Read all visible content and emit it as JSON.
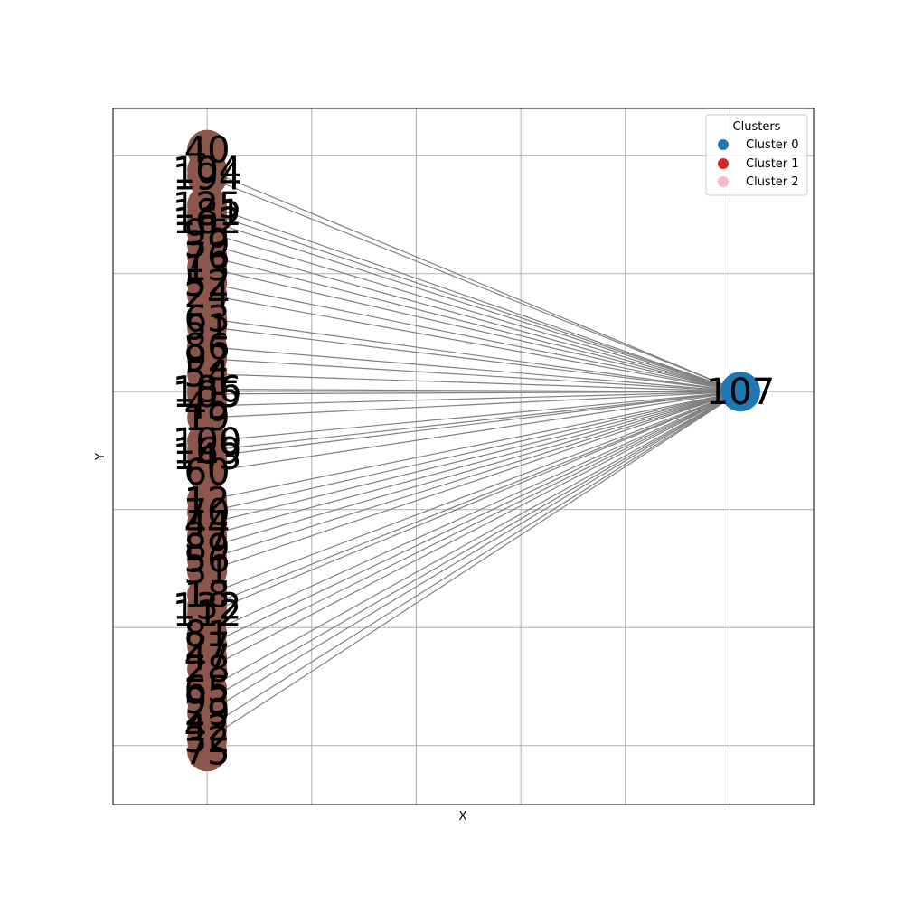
{
  "axes": {
    "xlabel": "X",
    "ylabel": "Y",
    "grid": true
  },
  "legend": {
    "title": "Clusters",
    "placement": "top-right",
    "entries": [
      {
        "label": "Cluster 0",
        "color": "#1f77b4"
      },
      {
        "label": "Cluster 1",
        "color": "#d62728"
      },
      {
        "label": "Cluster 2",
        "color": "#f7b6d2"
      }
    ]
  },
  "colors": {
    "hub_node": "#1f77b4",
    "leaf_node": "#8c564b",
    "edge": "#808080",
    "grid": "#b0b0b0"
  },
  "graph": {
    "hub": {
      "id": "107",
      "x": 1.02,
      "y": 0.0
    },
    "leaves": [
      {
        "id": "40",
        "y": 2.05
      },
      {
        "id": "104",
        "y": 1.88
      },
      {
        "id": "194",
        "y": 1.82
      },
      {
        "id": "125",
        "y": 1.58
      },
      {
        "id": "181",
        "y": 1.52
      },
      {
        "id": "162",
        "y": 1.45
      },
      {
        "id": "95",
        "y": 1.35
      },
      {
        "id": "39",
        "y": 1.25
      },
      {
        "id": "76",
        "y": 1.15
      },
      {
        "id": "13",
        "y": 1.05
      },
      {
        "id": "52",
        "y": 0.92
      },
      {
        "id": "24",
        "y": 0.82
      },
      {
        "id": "63",
        "y": 0.62
      },
      {
        "id": "51",
        "y": 0.55
      },
      {
        "id": "86",
        "y": 0.38
      },
      {
        "id": "92",
        "y": 0.28
      },
      {
        "id": "54",
        "y": 0.15
      },
      {
        "id": "186",
        "y": 0.02
      },
      {
        "id": "105",
        "y": -0.02
      },
      {
        "id": "45",
        "y": -0.12
      },
      {
        "id": "19",
        "y": -0.22
      },
      {
        "id": "100",
        "y": -0.42
      },
      {
        "id": "169",
        "y": -0.5
      },
      {
        "id": "143",
        "y": -0.55
      },
      {
        "id": "60",
        "y": -0.68
      },
      {
        "id": "12",
        "y": -0.92
      },
      {
        "id": "70",
        "y": -1.02
      },
      {
        "id": "44",
        "y": -1.12
      },
      {
        "id": "37",
        "y": -1.22
      },
      {
        "id": "89",
        "y": -1.32
      },
      {
        "id": "56",
        "y": -1.42
      },
      {
        "id": "31",
        "y": -1.52
      },
      {
        "id": "18",
        "y": -1.72
      },
      {
        "id": "132",
        "y": -1.82
      },
      {
        "id": "112",
        "y": -1.88
      },
      {
        "id": "81",
        "y": -2.05
      },
      {
        "id": "27",
        "y": -2.15
      },
      {
        "id": "47",
        "y": -2.25
      },
      {
        "id": "28",
        "y": -2.35
      },
      {
        "id": "65",
        "y": -2.52
      },
      {
        "id": "93",
        "y": -2.62
      },
      {
        "id": "29",
        "y": -2.72
      },
      {
        "id": "42",
        "y": -2.85
      },
      {
        "id": "32",
        "y": -2.95
      },
      {
        "id": "75",
        "y": -3.05
      }
    ],
    "edges": [
      {
        "from": "104",
        "to": "107"
      },
      {
        "from": "194",
        "to": "107"
      },
      {
        "from": "125",
        "to": "107"
      },
      {
        "from": "181",
        "to": "107"
      },
      {
        "from": "162",
        "to": "107"
      },
      {
        "from": "95",
        "to": "107"
      },
      {
        "from": "39",
        "to": "107"
      },
      {
        "from": "76",
        "to": "107"
      },
      {
        "from": "13",
        "to": "107"
      },
      {
        "from": "52",
        "to": "107"
      },
      {
        "from": "24",
        "to": "107"
      },
      {
        "from": "63",
        "to": "107"
      },
      {
        "from": "51",
        "to": "107"
      },
      {
        "from": "86",
        "to": "107"
      },
      {
        "from": "92",
        "to": "107"
      },
      {
        "from": "54",
        "to": "107"
      },
      {
        "from": "186",
        "to": "107"
      },
      {
        "from": "105",
        "to": "107"
      },
      {
        "from": "45",
        "to": "107"
      },
      {
        "from": "19",
        "to": "107"
      },
      {
        "from": "100",
        "to": "107"
      },
      {
        "from": "169",
        "to": "107"
      },
      {
        "from": "143",
        "to": "107"
      },
      {
        "from": "60",
        "to": "107"
      },
      {
        "from": "12",
        "to": "107"
      },
      {
        "from": "70",
        "to": "107"
      },
      {
        "from": "44",
        "to": "107"
      },
      {
        "from": "37",
        "to": "107"
      },
      {
        "from": "89",
        "to": "107"
      },
      {
        "from": "56",
        "to": "107"
      },
      {
        "from": "31",
        "to": "107"
      },
      {
        "from": "18",
        "to": "107"
      },
      {
        "from": "132",
        "to": "107"
      },
      {
        "from": "112",
        "to": "107"
      },
      {
        "from": "81",
        "to": "107"
      },
      {
        "from": "27",
        "to": "107"
      },
      {
        "from": "47",
        "to": "107"
      },
      {
        "from": "28",
        "to": "107"
      },
      {
        "from": "65",
        "to": "107"
      },
      {
        "from": "93",
        "to": "107"
      },
      {
        "from": "29",
        "to": "107"
      },
      {
        "from": "42",
        "to": "107"
      },
      {
        "from": "32",
        "to": "107"
      }
    ]
  }
}
